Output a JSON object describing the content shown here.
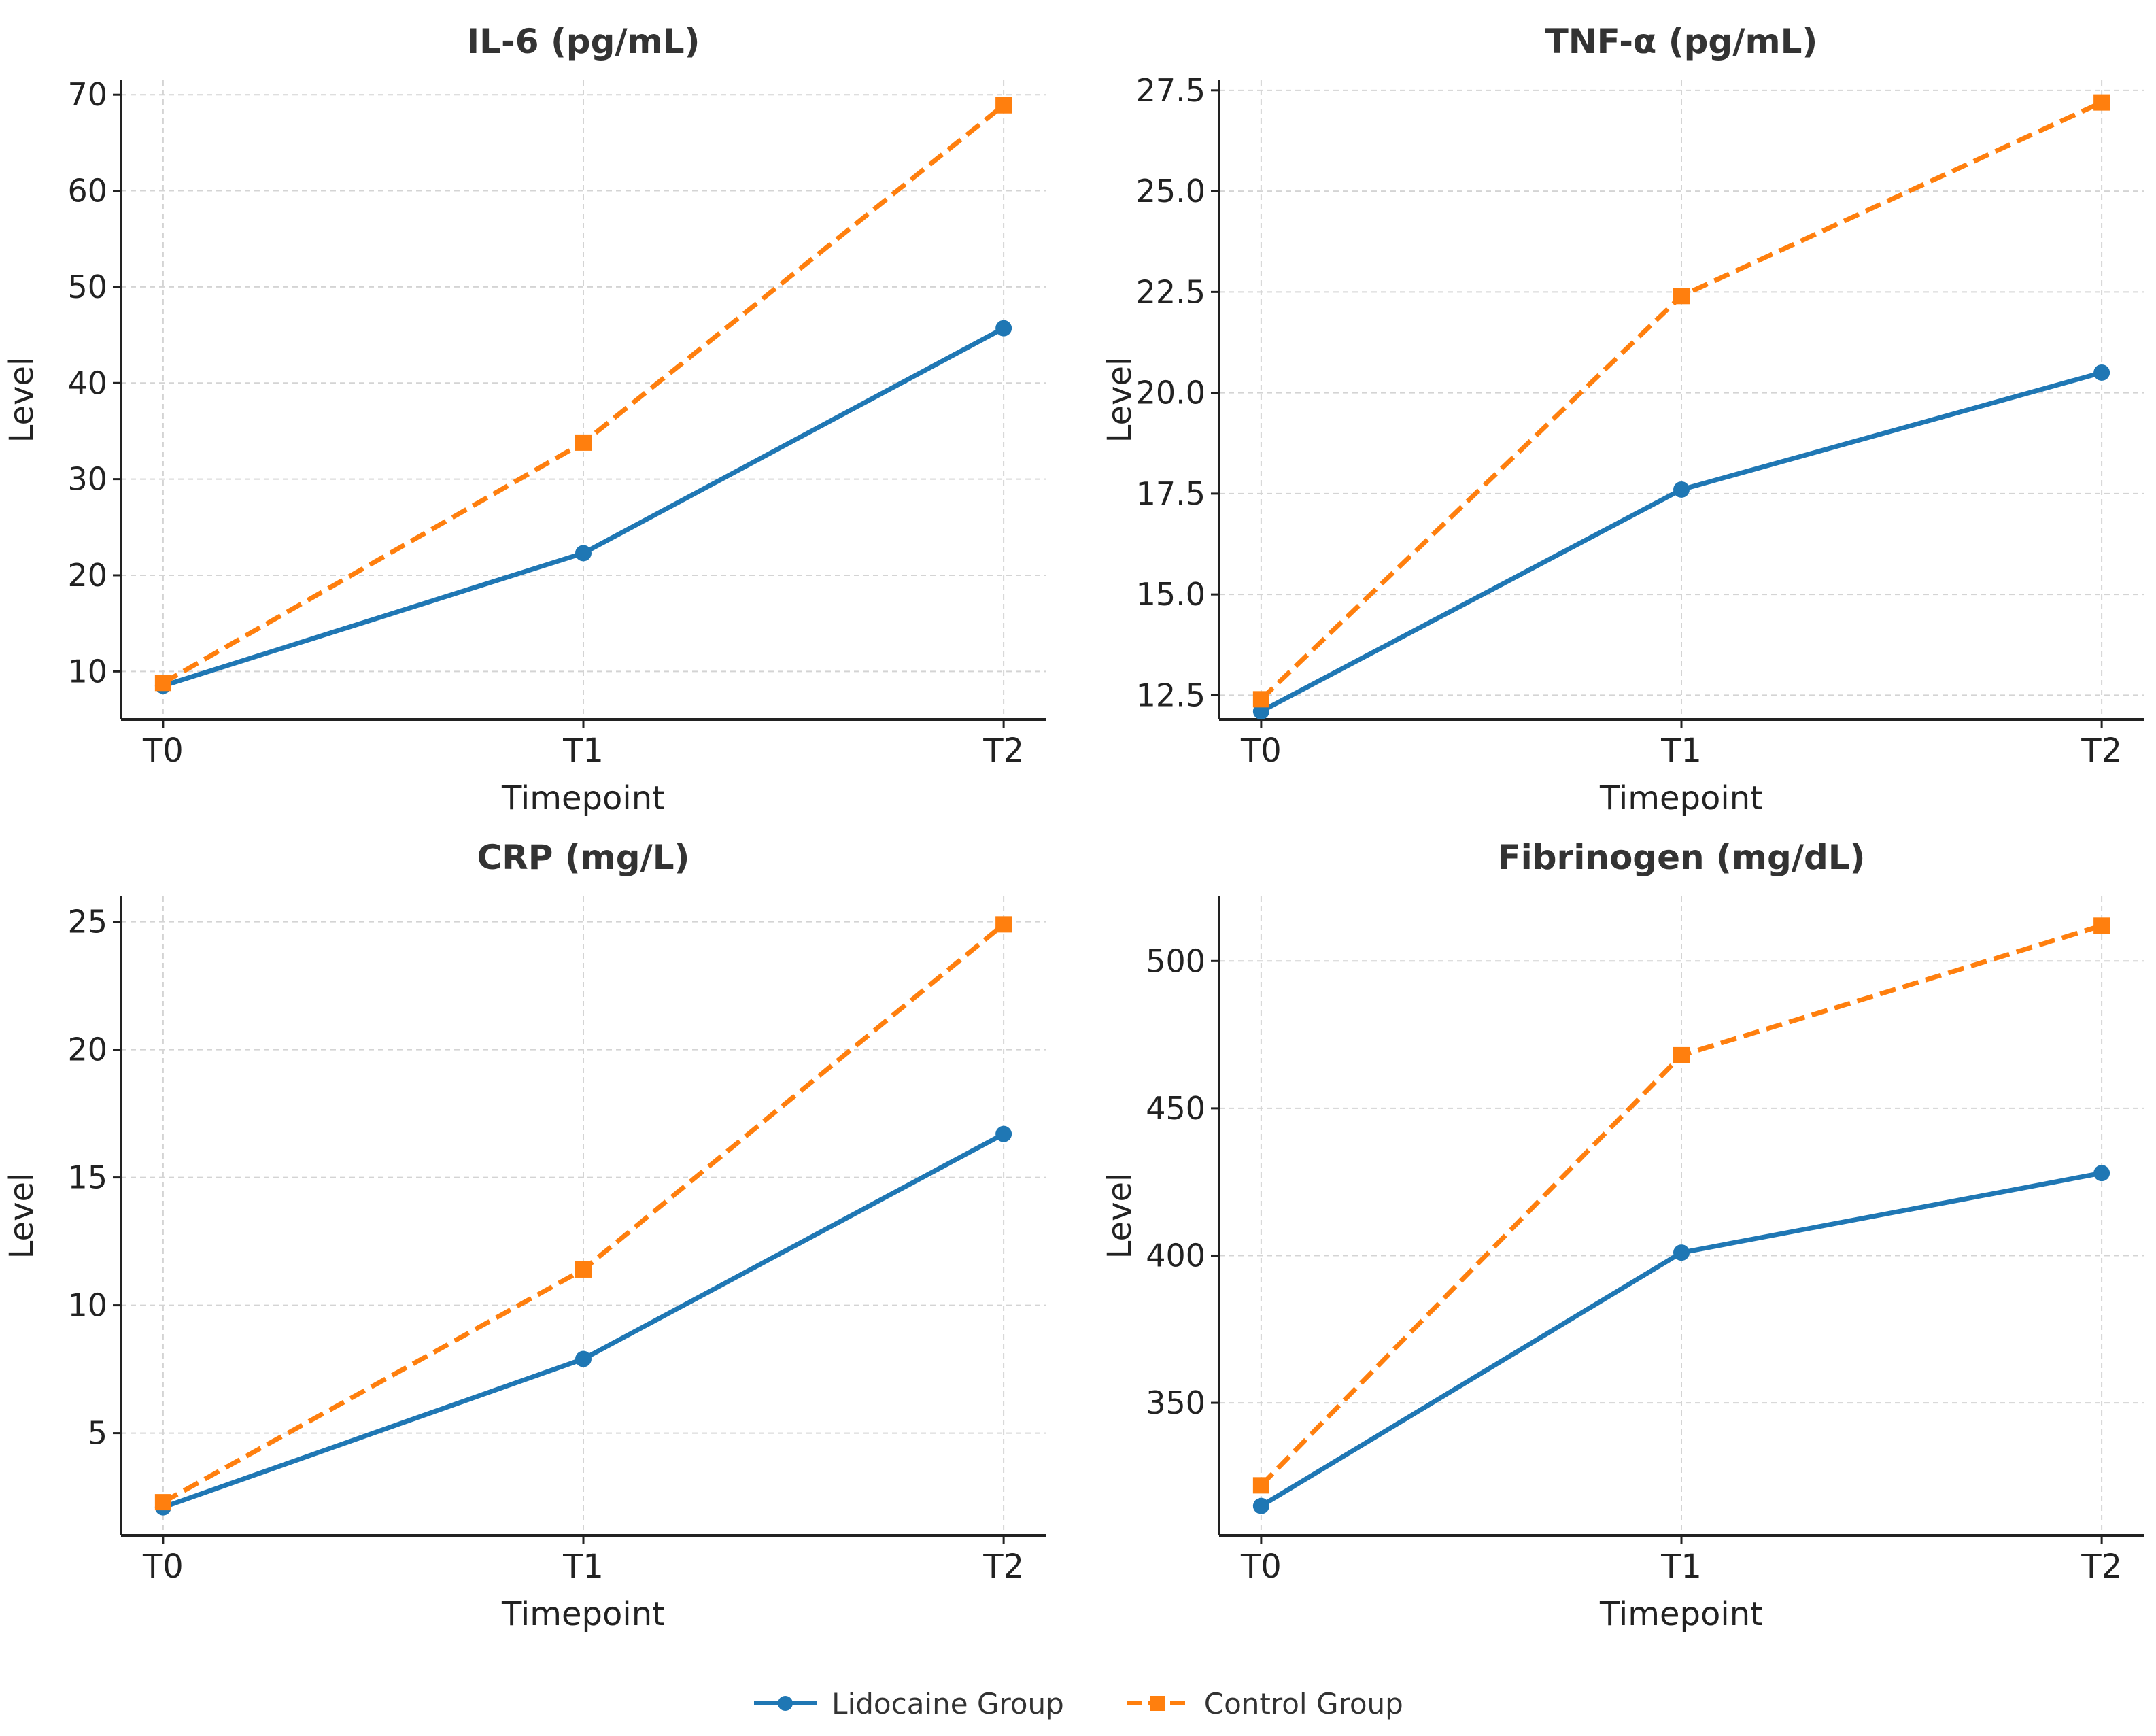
{
  "chart_data": [
    {
      "type": "line",
      "title": "IL-6 (pg/mL)",
      "xlabel": "Timepoint",
      "ylabel": "Level",
      "categories": [
        "T0",
        "T1",
        "T2"
      ],
      "ylim": [
        5.0,
        71.5
      ],
      "yticks": [
        10,
        20,
        30,
        40,
        50,
        60,
        70
      ],
      "grid": true,
      "series": [
        {
          "name": "Lidocaine Group",
          "values": [
            8.5,
            22.3,
            45.7
          ]
        },
        {
          "name": "Control Group",
          "values": [
            8.8,
            33.8,
            68.9
          ]
        }
      ]
    },
    {
      "type": "line",
      "title": "TNF-α (pg/mL)",
      "xlabel": "Timepoint",
      "ylabel": "Level",
      "categories": [
        "T0",
        "T1",
        "T2"
      ],
      "ylim": [
        11.9,
        27.75
      ],
      "yticks": [
        12.5,
        15.0,
        17.5,
        20.0,
        22.5,
        25.0,
        27.5
      ],
      "grid": true,
      "series": [
        {
          "name": "Lidocaine Group",
          "values": [
            12.1,
            17.6,
            20.5
          ]
        },
        {
          "name": "Control Group",
          "values": [
            12.4,
            22.4,
            27.2
          ]
        }
      ]
    },
    {
      "type": "line",
      "title": "CRP (mg/L)",
      "xlabel": "Timepoint",
      "ylabel": "Level",
      "categories": [
        "T0",
        "T1",
        "T2"
      ],
      "ylim": [
        1.0,
        26.0
      ],
      "yticks": [
        5,
        10,
        15,
        20,
        25
      ],
      "grid": true,
      "series": [
        {
          "name": "Lidocaine Group",
          "values": [
            2.1,
            7.9,
            16.7
          ]
        },
        {
          "name": "Control Group",
          "values": [
            2.3,
            11.4,
            24.9
          ]
        }
      ]
    },
    {
      "type": "line",
      "title": "Fibrinogen (mg/dL)",
      "xlabel": "Timepoint",
      "ylabel": "Level",
      "categories": [
        "T0",
        "T1",
        "T2"
      ],
      "ylim": [
        305,
        522
      ],
      "yticks": [
        350,
        400,
        450,
        500
      ],
      "grid": true,
      "series": [
        {
          "name": "Lidocaine Group",
          "values": [
            315,
            401,
            428
          ]
        },
        {
          "name": "Control Group",
          "values": [
            322,
            468,
            512
          ]
        }
      ]
    }
  ],
  "legend": {
    "placement": "bottom-center",
    "items": [
      {
        "label": "Lidocaine Group",
        "color": "#1f77b4",
        "marker": "circle",
        "linestyle": "solid"
      },
      {
        "label": "Control Group",
        "color": "#ff7f0e",
        "marker": "square",
        "linestyle": "dashed"
      }
    ]
  },
  "tick_labels": {
    "0": [
      "10",
      "20",
      "30",
      "40",
      "50",
      "60",
      "70"
    ],
    "1": [
      "12.5",
      "15.0",
      "17.5",
      "20.0",
      "22.5",
      "25.0",
      "27.5"
    ],
    "2": [
      "5",
      "10",
      "15",
      "20",
      "25"
    ],
    "3": [
      "350",
      "400",
      "450",
      "500"
    ]
  }
}
